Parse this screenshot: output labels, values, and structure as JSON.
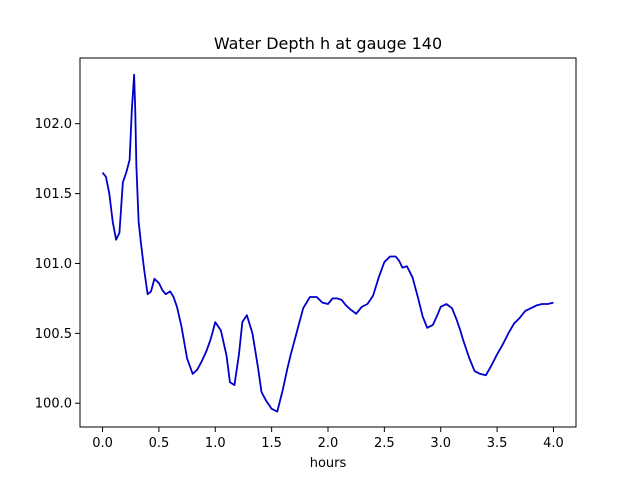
{
  "chart_data": {
    "type": "line",
    "title": "Water Depth h at gauge 140",
    "xlabel": "hours",
    "ylabel": "",
    "xlim": [
      -0.2,
      4.2
    ],
    "ylim": [
      99.83,
      102.47
    ],
    "xticks": [
      0.0,
      0.5,
      1.0,
      1.5,
      2.0,
      2.5,
      3.0,
      3.5,
      4.0
    ],
    "xtick_labels": [
      "0.0",
      "0.5",
      "1.0",
      "1.5",
      "2.0",
      "2.5",
      "3.0",
      "3.5",
      "4.0"
    ],
    "yticks": [
      100.0,
      100.5,
      101.0,
      101.5,
      102.0
    ],
    "ytick_labels": [
      "100.0",
      "100.5",
      "101.0",
      "101.5",
      "102.0"
    ],
    "grid": false,
    "colors": {
      "line": "#0000cc"
    },
    "series": [
      {
        "x": [
          0.0,
          0.03,
          0.06,
          0.09,
          0.12,
          0.15,
          0.18,
          0.21,
          0.24,
          0.26,
          0.28,
          0.29,
          0.3,
          0.32,
          0.34,
          0.37,
          0.4,
          0.43,
          0.46,
          0.5,
          0.53,
          0.56,
          0.6,
          0.63,
          0.66,
          0.7,
          0.75,
          0.8,
          0.84,
          0.88,
          0.92,
          0.96,
          1.0,
          1.05,
          1.1,
          1.13,
          1.17,
          1.21,
          1.24,
          1.28,
          1.33,
          1.38,
          1.41,
          1.45,
          1.5,
          1.55,
          1.6,
          1.64,
          1.67,
          1.72,
          1.78,
          1.84,
          1.9,
          1.95,
          2.0,
          2.04,
          2.08,
          2.12,
          2.16,
          2.2,
          2.25,
          2.3,
          2.35,
          2.4,
          2.45,
          2.5,
          2.55,
          2.6,
          2.63,
          2.66,
          2.7,
          2.75,
          2.8,
          2.84,
          2.88,
          2.93,
          2.97,
          3.0,
          3.05,
          3.1,
          3.14,
          3.17,
          3.2,
          3.25,
          3.3,
          3.35,
          3.4,
          3.45,
          3.5,
          3.55,
          3.6,
          3.65,
          3.7,
          3.75,
          3.8,
          3.85,
          3.9,
          3.95,
          4.0
        ],
        "y": [
          101.65,
          101.62,
          101.5,
          101.3,
          101.17,
          101.22,
          101.58,
          101.65,
          101.74,
          102.1,
          102.35,
          102.1,
          101.7,
          101.3,
          101.15,
          100.95,
          100.78,
          100.8,
          100.89,
          100.86,
          100.81,
          100.78,
          100.8,
          100.76,
          100.69,
          100.55,
          100.32,
          100.21,
          100.24,
          100.3,
          100.37,
          100.46,
          100.58,
          100.52,
          100.34,
          100.15,
          100.13,
          100.35,
          100.58,
          100.63,
          100.5,
          100.25,
          100.08,
          100.02,
          99.96,
          99.94,
          100.1,
          100.25,
          100.35,
          100.5,
          100.68,
          100.76,
          100.76,
          100.72,
          100.71,
          100.75,
          100.75,
          100.74,
          100.7,
          100.67,
          100.64,
          100.69,
          100.71,
          100.77,
          100.9,
          101.01,
          101.05,
          101.05,
          101.02,
          100.97,
          100.98,
          100.9,
          100.75,
          100.62,
          100.54,
          100.56,
          100.63,
          100.69,
          100.71,
          100.68,
          100.6,
          100.53,
          100.45,
          100.33,
          100.23,
          100.21,
          100.2,
          100.27,
          100.35,
          100.42,
          100.5,
          100.57,
          100.61,
          100.66,
          100.68,
          100.7,
          100.71,
          100.71,
          100.72
        ]
      }
    ]
  }
}
